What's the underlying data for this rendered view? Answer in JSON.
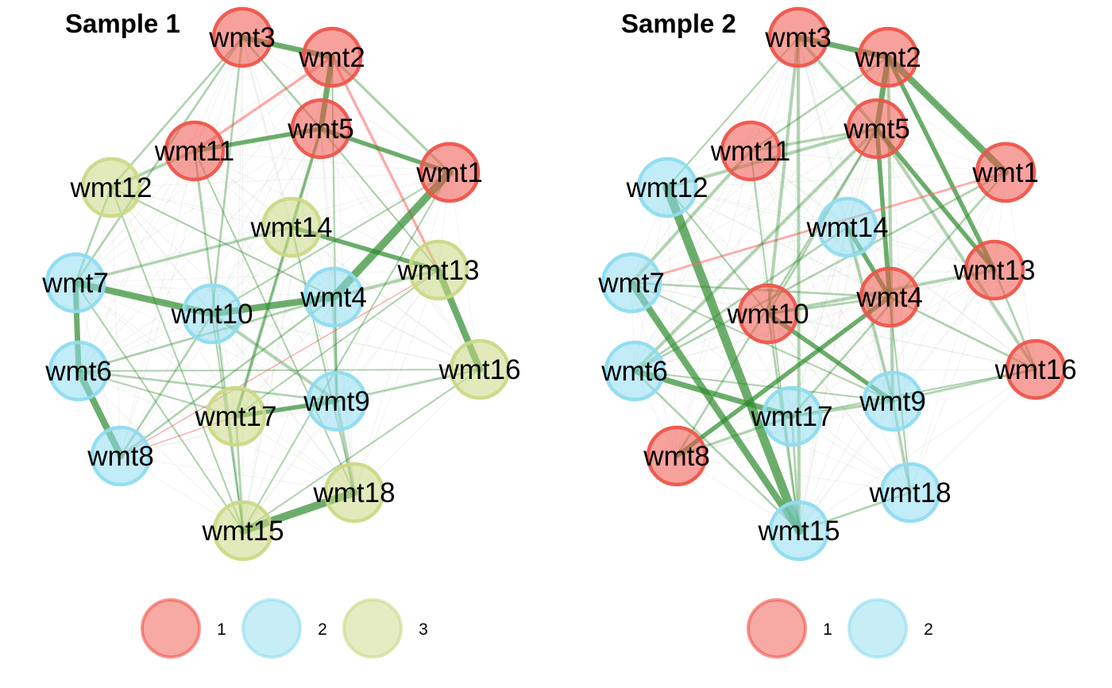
{
  "colors": {
    "groups": {
      "1": "#f0544a",
      "2": "#8fdcf0",
      "3": "#cbd985"
    },
    "edge_positive": "#2e8b2e",
    "edge_negative": "#ff6b6b"
  },
  "panels": [
    {
      "title": "Sample 1",
      "legend": [
        {
          "group": "1",
          "label": "1"
        },
        {
          "group": "2",
          "label": "2"
        },
        {
          "group": "3",
          "label": "3"
        }
      ],
      "nodes": [
        {
          "id": "wmt3",
          "label": "wmt3",
          "group": "1"
        },
        {
          "id": "wmt2",
          "label": "wmt2",
          "group": "1"
        },
        {
          "id": "wmt5",
          "label": "wmt5",
          "group": "1"
        },
        {
          "id": "wmt11",
          "label": "wmt11",
          "group": "1"
        },
        {
          "id": "wmt1",
          "label": "wmt1",
          "group": "1"
        },
        {
          "id": "wmt12",
          "label": "wmt12",
          "group": "3"
        },
        {
          "id": "wmt14",
          "label": "wmt14",
          "group": "3"
        },
        {
          "id": "wmt13",
          "label": "wmt13",
          "group": "3"
        },
        {
          "id": "wmt7",
          "label": "wmt7",
          "group": "2"
        },
        {
          "id": "wmt4",
          "label": "wmt4",
          "group": "2"
        },
        {
          "id": "wmt10",
          "label": "wmt10",
          "group": "2"
        },
        {
          "id": "wmt16",
          "label": "wmt16",
          "group": "3"
        },
        {
          "id": "wmt6",
          "label": "wmt6",
          "group": "2"
        },
        {
          "id": "wmt9",
          "label": "wmt9",
          "group": "2"
        },
        {
          "id": "wmt17",
          "label": "wmt17",
          "group": "3"
        },
        {
          "id": "wmt8",
          "label": "wmt8",
          "group": "2"
        },
        {
          "id": "wmt18",
          "label": "wmt18",
          "group": "3"
        },
        {
          "id": "wmt15",
          "label": "wmt15",
          "group": "3"
        }
      ],
      "edges": [
        {
          "s": "wmt3",
          "t": "wmt2",
          "w": 5
        },
        {
          "s": "wmt2",
          "t": "wmt5",
          "w": 5
        },
        {
          "s": "wmt11",
          "t": "wmt5",
          "w": 4
        },
        {
          "s": "wmt2",
          "t": "wmt11",
          "w": 2.5,
          "sign": "neg"
        },
        {
          "s": "wmt2",
          "t": "wmt1",
          "w": 2.5
        },
        {
          "s": "wmt2",
          "t": "wmt13",
          "w": 2.5,
          "sign": "neg"
        },
        {
          "s": "wmt5",
          "t": "wmt1",
          "w": 4
        },
        {
          "s": "wmt1",
          "t": "wmt4",
          "w": 7
        },
        {
          "s": "wmt1",
          "t": "wmt15",
          "w": 1.5
        },
        {
          "s": "wmt13",
          "t": "wmt16",
          "w": 6
        },
        {
          "s": "wmt14",
          "t": "wmt13",
          "w": 4
        },
        {
          "s": "wmt7",
          "t": "wmt14",
          "w": 2.5
        },
        {
          "s": "wmt7",
          "t": "wmt10",
          "w": 6
        },
        {
          "s": "wmt10",
          "t": "wmt4",
          "w": 6
        },
        {
          "s": "wmt4",
          "t": "wmt13",
          "w": 3
        },
        {
          "s": "wmt7",
          "t": "wmt6",
          "w": 5
        },
        {
          "s": "wmt6",
          "t": "wmt8",
          "w": 6
        },
        {
          "s": "wmt8",
          "t": "wmt10",
          "w": 2
        },
        {
          "s": "wmt8",
          "t": "wmt17",
          "w": 1,
          "sign": "neg"
        },
        {
          "s": "wmt17",
          "t": "wmt9",
          "w": 4
        },
        {
          "s": "wmt9",
          "t": "wmt16",
          "w": 2
        },
        {
          "s": "wmt18",
          "t": "wmt15",
          "w": 7
        },
        {
          "s": "wmt9",
          "t": "wmt18",
          "w": 3
        },
        {
          "s": "wmt4",
          "t": "wmt9",
          "w": 3
        },
        {
          "s": "wmt5",
          "t": "wmt14",
          "w": 2.5
        },
        {
          "s": "wmt5",
          "t": "wmt17",
          "w": 3
        },
        {
          "s": "wmt14",
          "t": "wmt17",
          "w": 2
        },
        {
          "s": "wmt11",
          "t": "wmt12",
          "w": 3
        },
        {
          "s": "wmt12",
          "t": "wmt7",
          "w": 2
        },
        {
          "s": "wmt3",
          "t": "wmt7",
          "w": 2
        },
        {
          "s": "wmt3",
          "t": "wmt12",
          "w": 2
        },
        {
          "s": "wmt3",
          "t": "wmt10",
          "w": 2
        },
        {
          "s": "wmt3",
          "t": "wmt5",
          "w": 2
        },
        {
          "s": "wmt11",
          "t": "wmt15",
          "w": 2
        },
        {
          "s": "wmt12",
          "t": "wmt15",
          "w": 1.5
        },
        {
          "s": "wmt10",
          "t": "wmt15",
          "w": 1.5
        },
        {
          "s": "wmt10",
          "t": "wmt9",
          "w": 3
        },
        {
          "s": "wmt6",
          "t": "wmt16",
          "w": 1.5
        },
        {
          "s": "wmt6",
          "t": "wmt4",
          "w": 2
        },
        {
          "s": "wmt7",
          "t": "wmt15",
          "w": 1.5
        },
        {
          "s": "wmt16",
          "t": "wmt15",
          "w": 1.5
        },
        {
          "s": "wmt13",
          "t": "wmt8",
          "w": 1,
          "sign": "neg"
        },
        {
          "s": "wmt14",
          "t": "wmt18",
          "w": 1.5
        },
        {
          "s": "wmt5",
          "t": "wmt13",
          "w": 1.5
        },
        {
          "s": "wmt17",
          "t": "wmt13",
          "w": 1.5
        },
        {
          "s": "wmt6",
          "t": "wmt9",
          "w": 2
        },
        {
          "s": "wmt8",
          "t": "wmt4",
          "w": 2
        },
        {
          "s": "wmt17",
          "t": "wmt15",
          "w": 2
        },
        {
          "s": "wmt11",
          "t": "wmt18",
          "w": 1.5
        },
        {
          "s": "wmt12",
          "t": "wmt4",
          "w": 1.5
        },
        {
          "s": "wmt1",
          "t": "wmt10",
          "w": 1.5
        },
        {
          "s": "wmt2",
          "t": "wmt9",
          "w": 1.5
        },
        {
          "s": "wmt6",
          "t": "wmt17",
          "w": 1.5
        }
      ]
    },
    {
      "title": "Sample 2",
      "legend": [
        {
          "group": "1",
          "label": "1"
        },
        {
          "group": "2",
          "label": "2"
        }
      ],
      "nodes": [
        {
          "id": "wmt3",
          "label": "wmt3",
          "group": "1"
        },
        {
          "id": "wmt2",
          "label": "wmt2",
          "group": "1"
        },
        {
          "id": "wmt5",
          "label": "wmt5",
          "group": "1"
        },
        {
          "id": "wmt11",
          "label": "wmt11",
          "group": "1"
        },
        {
          "id": "wmt1",
          "label": "wmt1",
          "group": "1"
        },
        {
          "id": "wmt12",
          "label": "wmt12",
          "group": "2"
        },
        {
          "id": "wmt14",
          "label": "wmt14",
          "group": "2"
        },
        {
          "id": "wmt13",
          "label": "wmt13",
          "group": "1"
        },
        {
          "id": "wmt7",
          "label": "wmt7",
          "group": "2"
        },
        {
          "id": "wmt4",
          "label": "wmt4",
          "group": "1"
        },
        {
          "id": "wmt10",
          "label": "wmt10",
          "group": "1"
        },
        {
          "id": "wmt16",
          "label": "wmt16",
          "group": "1"
        },
        {
          "id": "wmt6",
          "label": "wmt6",
          "group": "2"
        },
        {
          "id": "wmt9",
          "label": "wmt9",
          "group": "2"
        },
        {
          "id": "wmt17",
          "label": "wmt17",
          "group": "2"
        },
        {
          "id": "wmt8",
          "label": "wmt8",
          "group": "1"
        },
        {
          "id": "wmt18",
          "label": "wmt18",
          "group": "2"
        },
        {
          "id": "wmt15",
          "label": "wmt15",
          "group": "2"
        }
      ],
      "edges": [
        {
          "s": "wmt3",
          "t": "wmt2",
          "w": 5
        },
        {
          "s": "wmt2",
          "t": "wmt5",
          "w": 5
        },
        {
          "s": "wmt2",
          "t": "wmt1",
          "w": 6
        },
        {
          "s": "wmt3",
          "t": "wmt5",
          "w": 3
        },
        {
          "s": "wmt12",
          "t": "wmt15",
          "w": 8
        },
        {
          "s": "wmt7",
          "t": "wmt15",
          "w": 6
        },
        {
          "s": "wmt6",
          "t": "wmt17",
          "w": 5
        },
        {
          "s": "wmt17",
          "t": "wmt9",
          "w": 3
        },
        {
          "s": "wmt8",
          "t": "wmt4",
          "w": 4
        },
        {
          "s": "wmt5",
          "t": "wmt4",
          "w": 4
        },
        {
          "s": "wmt5",
          "t": "wmt13",
          "w": 4
        },
        {
          "s": "wmt5",
          "t": "wmt16",
          "w": 3
        },
        {
          "s": "wmt2",
          "t": "wmt13",
          "w": 4
        },
        {
          "s": "wmt7",
          "t": "wmt1",
          "w": 2,
          "sign": "neg"
        },
        {
          "s": "wmt14",
          "t": "wmt4",
          "w": 4
        },
        {
          "s": "wmt10",
          "t": "wmt9",
          "w": 4
        },
        {
          "s": "wmt10",
          "t": "wmt13",
          "w": 3
        },
        {
          "s": "wmt9",
          "t": "wmt18",
          "w": 2.5
        },
        {
          "s": "wmt15",
          "t": "wmt18",
          "w": 2
        },
        {
          "s": "wmt11",
          "t": "wmt7",
          "w": 3
        },
        {
          "s": "wmt6",
          "t": "wmt5",
          "w": 3
        },
        {
          "s": "wmt12",
          "t": "wmt5",
          "w": 3
        },
        {
          "s": "wmt3",
          "t": "wmt15",
          "w": 3
        },
        {
          "s": "wmt3",
          "t": "wmt10",
          "w": 3
        },
        {
          "s": "wmt11",
          "t": "wmt5",
          "w": 2.5
        },
        {
          "s": "wmt2",
          "t": "wmt9",
          "w": 3
        },
        {
          "s": "wmt14",
          "t": "wmt9",
          "w": 3
        },
        {
          "s": "wmt4",
          "t": "wmt16",
          "w": 2
        },
        {
          "s": "wmt9",
          "t": "wmt16",
          "w": 2
        },
        {
          "s": "wmt7",
          "t": "wmt4",
          "w": 2
        },
        {
          "s": "wmt6",
          "t": "wmt1",
          "w": 2
        },
        {
          "s": "wmt8",
          "t": "wmt17",
          "w": 2.5
        },
        {
          "s": "wmt10",
          "t": "wmt15",
          "w": 2
        },
        {
          "s": "wmt17",
          "t": "wmt15",
          "w": 2
        },
        {
          "s": "wmt6",
          "t": "wmt15",
          "w": 2
        },
        {
          "s": "wmt11",
          "t": "wmt2",
          "w": 2
        },
        {
          "s": "wmt1",
          "t": "wmt17",
          "w": 2
        },
        {
          "s": "wmt12",
          "t": "wmt10",
          "w": 1.5
        },
        {
          "s": "wmt14",
          "t": "wmt6",
          "w": 2
        },
        {
          "s": "wmt4",
          "t": "wmt10",
          "w": 2
        },
        {
          "s": "wmt5",
          "t": "wmt10",
          "w": 2
        },
        {
          "s": "wmt13",
          "t": "wmt16",
          "w": 2
        },
        {
          "s": "wmt11",
          "t": "wmt15",
          "w": 1.5
        },
        {
          "s": "wmt3",
          "t": "wmt12",
          "w": 1.5
        },
        {
          "s": "wmt7",
          "t": "wmt9",
          "w": 1.5
        },
        {
          "s": "wmt8",
          "t": "wmt5",
          "w": 2
        },
        {
          "s": "wmt18",
          "t": "wmt4",
          "w": 1.5
        },
        {
          "s": "wmt16",
          "t": "wmt17",
          "w": 1.5
        },
        {
          "s": "wmt6",
          "t": "wmt9",
          "w": 1.5
        }
      ]
    }
  ]
}
